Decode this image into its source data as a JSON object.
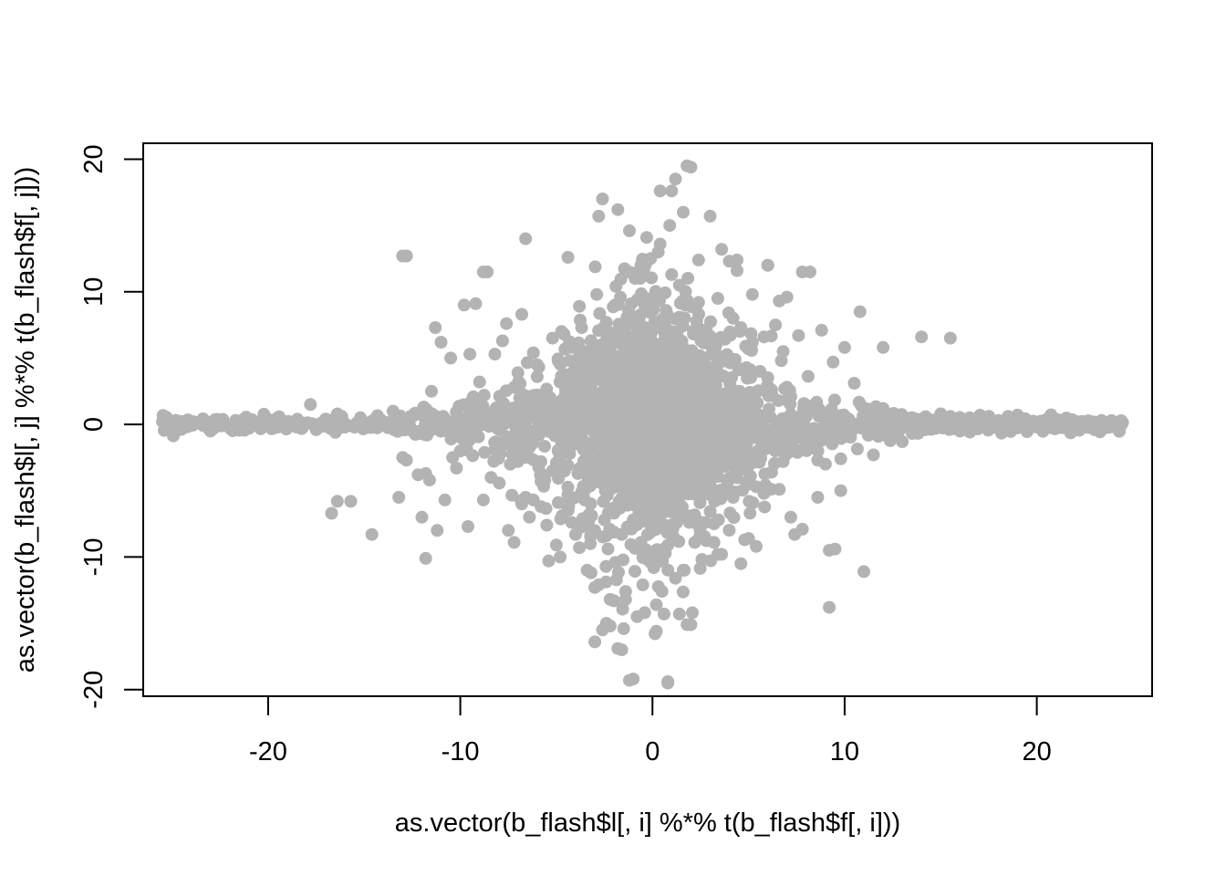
{
  "chart_data": {
    "type": "scatter",
    "title": "",
    "xlabel": "as.vector(b_flash$l[, i] %*% t(b_flash$f[, i]))",
    "ylabel": "as.vector(b_flash$l[, j] %*% t(b_flash$f[, j]))",
    "xlim": [
      -26.5,
      26
    ],
    "ylim": [
      -20.5,
      21.2
    ],
    "xticks": [
      -20,
      -10,
      0,
      10,
      20
    ],
    "yticks": [
      -20,
      -10,
      0,
      10,
      20
    ],
    "xtick_labels": [
      "-20",
      "-10",
      "0",
      "10",
      "20"
    ],
    "ytick_labels": [
      "-20",
      "-10",
      "0",
      "10",
      "20"
    ],
    "point_color": "#b3b3b3",
    "grid": false,
    "legend": "none",
    "series": [
      {
        "x": [
          -25.5,
          -24.8,
          -24.0,
          -23.0,
          -22.4,
          -21.7,
          -21.0,
          -20.2,
          -19.5,
          -18.6,
          -17.8,
          -17.5,
          -17.0,
          -16.4,
          -16.7,
          -16.5,
          -15.7,
          -15.2,
          -14.6,
          -14.0,
          -13.5,
          -13.2,
          -13.0,
          -12.8,
          -12.6,
          -12.2,
          -12.0,
          -11.8,
          -11.6,
          -11.5,
          -11.3,
          -11.2,
          -11.0,
          -10.8,
          -10.5,
          -10.2,
          -10.0,
          -9.8,
          -9.6,
          -9.4,
          -9.2,
          -9.0,
          -8.8,
          -8.6,
          -8.4,
          -8.2,
          -8.0,
          -7.8,
          -7.6,
          -7.4,
          -7.2,
          -7.0,
          -6.8,
          -6.6,
          -6.4,
          -6.2,
          -6.0,
          -5.8,
          -5.6,
          -5.4,
          -5.2,
          -5.0,
          -4.8,
          -4.6,
          -4.4,
          -4.2,
          -4.0,
          -3.8,
          -3.6,
          -3.4,
          -3.2,
          -3.0,
          -2.8,
          -2.6,
          -2.4,
          -2.2,
          -2.0,
          -1.8,
          -1.6,
          -1.4,
          -1.2,
          -1.0,
          -0.8,
          -0.6,
          -0.4,
          -0.2,
          0.0,
          0.2,
          0.4,
          0.6,
          0.8,
          1.0,
          1.2,
          1.4,
          1.6,
          1.8,
          2.0,
          2.2,
          2.4,
          2.6,
          2.8,
          3.0,
          3.2,
          3.4,
          3.6,
          3.8,
          4.0,
          4.2,
          4.4,
          4.6,
          4.8,
          5.0,
          5.2,
          5.4,
          5.6,
          5.8,
          6.0,
          6.2,
          6.4,
          6.6,
          6.8,
          7.0,
          7.2,
          7.4,
          7.6,
          7.8,
          8.0,
          8.2,
          8.4,
          8.6,
          8.8,
          9.0,
          9.2,
          9.4,
          9.6,
          9.8,
          10.0,
          10.5,
          11.0,
          11.5,
          12.0,
          12.5,
          13.0,
          13.5,
          14.0,
          14.5,
          15.0,
          15.5,
          16.0,
          16.5,
          17.0,
          17.5,
          18.0,
          18.5,
          19.0,
          19.5,
          20.0,
          20.5,
          21.0,
          21.5,
          22.0,
          22.5,
          23.0,
          23.5,
          23.8,
          -12.8,
          -8.8,
          -6.6,
          -4.4,
          -2.6,
          -1.8,
          -0.3,
          0.4,
          1.2,
          1.8,
          0.9,
          -1.2,
          -2.4,
          -3.0,
          -1.6,
          0.8,
          -2.2,
          -0.8,
          -1.4,
          2.0,
          3.2,
          4.0,
          6.0,
          7.8,
          9.2,
          10.8,
          12.0,
          14.0,
          15.5,
          -3.2,
          -2.8,
          -2.0,
          -1.5,
          -0.5,
          0.2,
          0.6,
          1.6,
          3.4,
          4.6,
          -9.5,
          -10.4,
          -6.8,
          -5.0,
          -4.0,
          -5.5,
          4.8,
          5.4,
          6.6,
          7.2,
          8.6,
          9.5,
          -11.8,
          -13.0,
          -7.5,
          -6.2,
          3.6,
          4.4,
          5.2,
          6.4,
          -0.9,
          -0.1,
          0.3,
          1.0,
          1.4,
          2.4,
          -1.0,
          -0.6,
          -0.2,
          0.5,
          1.1,
          2.2,
          -4.6,
          -3.8,
          -2.9,
          -1.9,
          -0.7,
          0.7,
          1.7,
          2.6,
          3.5,
          4.2,
          5.0,
          5.8,
          -5.8,
          -4.9,
          -3.3,
          -2.5,
          -1.3,
          -0.4,
          0.1,
          0.9,
          1.9,
          2.7,
          3.9,
          5.1,
          -7.2,
          -6.0,
          -4.3,
          -3.1,
          -2.1,
          -1.1,
          0.0,
          1.3,
          2.3,
          3.1,
          4.3,
          6.2,
          -8.2,
          -7.0,
          -5.2,
          -3.5,
          -2.3,
          -0.9,
          0.6,
          2.1,
          3.3,
          4.7,
          6.8,
          8.0,
          -9.0,
          -7.8,
          -6.4,
          -4.8,
          -3.6,
          -2.7,
          -1.7,
          -0.5,
          0.5,
          1.5,
          2.5,
          3.7,
          5.3,
          7.0,
          8.4,
          9.8,
          -10.6,
          -9.4,
          -8.0,
          -6.9,
          -5.9,
          -4.7,
          -3.7,
          -2.8,
          -1.6,
          -0.6,
          0.4,
          1.6,
          2.6,
          3.8,
          4.9,
          6.1,
          7.3,
          8.8,
          10.2,
          11.4
        ],
        "y": [
          0.2,
          0.3,
          0.1,
          -0.5,
          0.2,
          0.1,
          -0.3,
          0.2,
          -0.2,
          0.1,
          1.5,
          -0.4,
          0.3,
          -5.8,
          -6.7,
          -0.6,
          -5.8,
          0.5,
          -8.3,
          0.2,
          1.0,
          -5.5,
          12.7,
          -2.7,
          0.6,
          -3.8,
          -7.0,
          -10.1,
          -4.2,
          2.5,
          7.3,
          -8.0,
          6.2,
          -5.7,
          5.0,
          -3.3,
          -2.0,
          9.0,
          -7.7,
          1.8,
          9.1,
          3.2,
          -5.7,
          11.5,
          -4.0,
          5.3,
          -2.4,
          6.3,
          7.6,
          -3.0,
          -8.9,
          3.9,
          8.3,
          -5.5,
          -7.0,
          5.4,
          4.5,
          -6.2,
          -4.2,
          -10.3,
          6.5,
          -2.9,
          -10.0,
          3.6,
          -3.1,
          -7.4,
          0.5,
          -9.3,
          4.8,
          -11.0,
          2.2,
          -12.3,
          15.7,
          -15.5,
          7.7,
          -13.2,
          -4.6,
          -16.9,
          -8.3,
          -12.6,
          14.6,
          -19.2,
          -5.2,
          12.0,
          -14.2,
          9.4,
          -7.5,
          -15.6,
          13.6,
          -9.4,
          -19.4,
          17.6,
          -11.6,
          -14.3,
          16.0,
          -15.1,
          19.4,
          -8.9,
          12.4,
          -4.6,
          7.1,
          15.7,
          -7.5,
          9.5,
          -9.8,
          -2.2,
          -5.1,
          -5.5,
          11.6,
          7.3,
          -3.4,
          -8.6,
          6.2,
          -4.7,
          4.0,
          -5.2,
          12.0,
          -3.6,
          -2.0,
          9.3,
          5.5,
          9.6,
          2.1,
          -8.3,
          6.7,
          -7.9,
          0.6,
          11.5,
          -0.3,
          -2.7,
          7.1,
          -3.0,
          -9.5,
          4.7,
          0.3,
          -5.0,
          5.8,
          3.1,
          -11.1,
          -2.3,
          1.2,
          -0.8,
          -1.3,
          0.5,
          0.4,
          -0.3,
          0.8,
          0.6,
          -0.5,
          0.5,
          0.2,
          -0.1,
          0.3,
          0.6,
          0.7,
          0.2,
          -0.2,
          0.1,
          -0.3,
          0.0,
          -0.1,
          0.2,
          -0.4,
          0.0,
          -0.2,
          12.7,
          11.5,
          14.0,
          12.6,
          17.0,
          16.2,
          14.1,
          17.6,
          18.5,
          19.5,
          15.0,
          -19.3,
          -15.0,
          -16.4,
          -17.0,
          -19.5,
          -15.2,
          -14.5,
          -13.2,
          -15.1,
          -8.9,
          12.3,
          12.0,
          11.5,
          -13.8,
          8.5,
          5.8,
          6.6,
          6.5,
          -11.2,
          -12.1,
          -13.3,
          -15.4,
          -12.1,
          -13.6,
          -14.3,
          -11.0,
          -9.8,
          -10.5,
          5.3,
          -2.5,
          -6.0,
          -9.1,
          -8.3,
          -7.6,
          -8.7,
          -9.2,
          -4.9,
          -7.0,
          -5.5,
          -9.4,
          -3.7,
          -2.5,
          -8.0,
          -5.7,
          13.2,
          12.4,
          9.8,
          7.5,
          11.0,
          12.5,
          13.0,
          11.3,
          10.5,
          9.2,
          -7.2,
          -8.9,
          -9.6,
          -10.1,
          -8.5,
          -7.4,
          6.8,
          8.9,
          9.8,
          10.4,
          7.8,
          8.2,
          9.0,
          7.1,
          6.4,
          8.0,
          5.7,
          6.6,
          -4.3,
          -5.9,
          -6.8,
          -7.2,
          -6.1,
          -5.5,
          -6.0,
          -4.8,
          -6.9,
          -5.2,
          -4.4,
          -3.9,
          2.8,
          3.6,
          4.8,
          5.9,
          6.7,
          5.3,
          6.2,
          4.4,
          5.1,
          3.2,
          4.9,
          2.6,
          -1.9,
          -2.8,
          -3.5,
          -3.1,
          -4.2,
          -3.6,
          -3.3,
          -2.5,
          -2.9,
          -2.2,
          -2.8,
          -1.7,
          0.7,
          1.4,
          2.1,
          1.7,
          2.9,
          3.5,
          2.4,
          3.9,
          2.7,
          2.0,
          3.3,
          1.6,
          1.9,
          2.8,
          1.1,
          0.5,
          -0.6,
          0.9,
          -1.4,
          -1.2,
          -0.8,
          -1.6,
          -1.0,
          -0.4,
          -1.9,
          -0.7,
          -1.3,
          -0.5,
          -1.1,
          -0.9,
          -1.5,
          -0.6,
          -1.0,
          -0.3,
          -0.7,
          0.4
        ]
      }
    ]
  }
}
